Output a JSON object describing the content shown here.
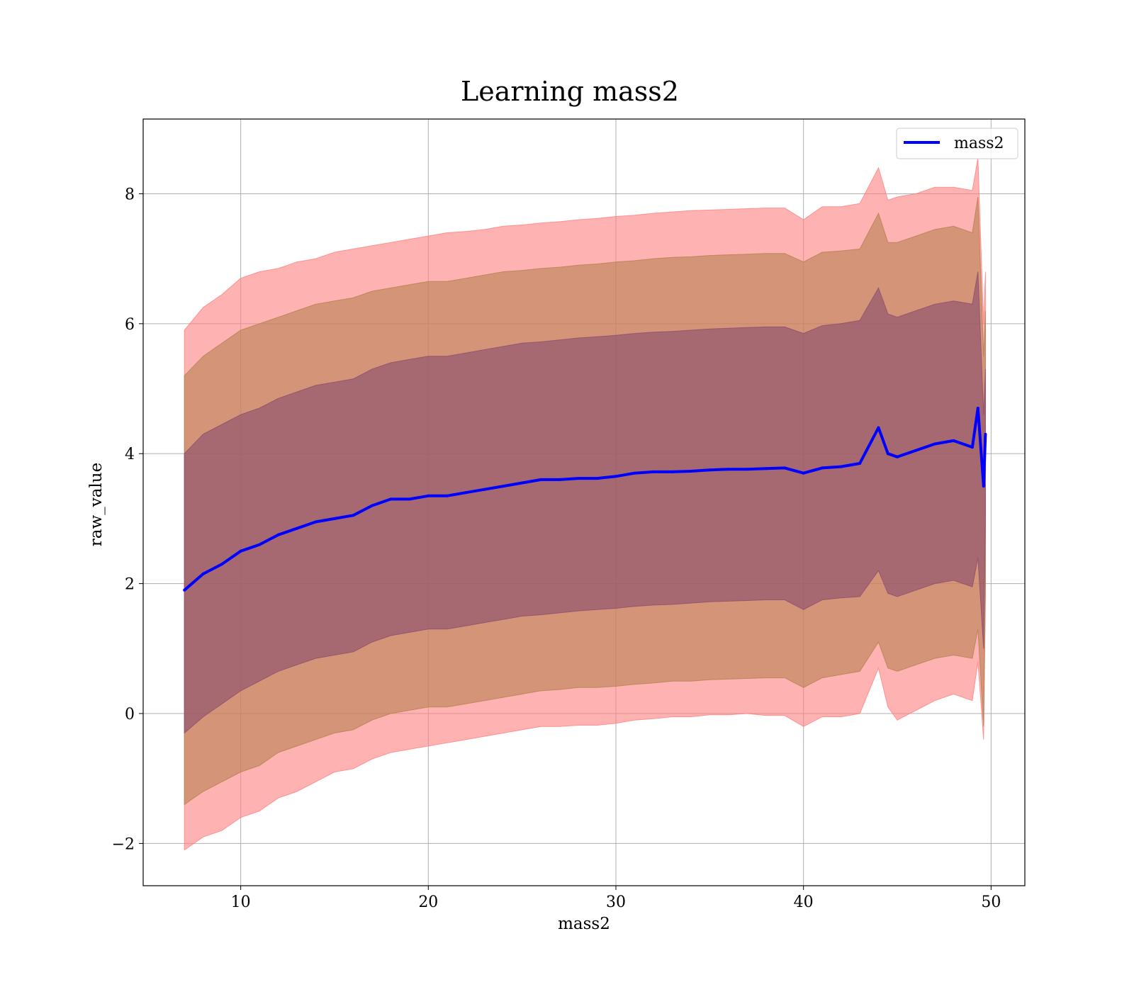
{
  "chart_data": {
    "type": "area",
    "title": "Learning mass2",
    "xlabel": "mass2",
    "ylabel": "raw_value",
    "xlim": [
      4.8,
      51.8
    ],
    "ylim": [
      -2.65,
      9.15
    ],
    "xticks": [
      10,
      20,
      30,
      40,
      50
    ],
    "yticks": [
      -2,
      0,
      2,
      4,
      6,
      8
    ],
    "grid": true,
    "legend_position": "top-right",
    "x": [
      7.0,
      8.0,
      9.0,
      10.0,
      11.0,
      12.0,
      13.0,
      14.0,
      15.0,
      16.0,
      17.0,
      18.0,
      19.0,
      20.0,
      21.0,
      22.0,
      23.0,
      24.0,
      25.0,
      26.0,
      27.0,
      28.0,
      29.0,
      30.0,
      31.0,
      32.0,
      33.0,
      34.0,
      35.0,
      36.0,
      37.0,
      38.0,
      39.0,
      40.0,
      41.0,
      42.0,
      43.0,
      44.0,
      44.5,
      45.0,
      46.0,
      47.0,
      48.0,
      49.0,
      49.3,
      49.6,
      49.7
    ],
    "series": [
      {
        "name": "mass2",
        "color": "#0000ff",
        "values": [
          1.9,
          2.15,
          2.3,
          2.5,
          2.6,
          2.75,
          2.85,
          2.95,
          3.0,
          3.05,
          3.2,
          3.3,
          3.3,
          3.35,
          3.35,
          3.4,
          3.45,
          3.5,
          3.55,
          3.6,
          3.6,
          3.62,
          3.62,
          3.65,
          3.7,
          3.72,
          3.72,
          3.73,
          3.75,
          3.76,
          3.76,
          3.77,
          3.78,
          3.7,
          3.78,
          3.8,
          3.85,
          4.4,
          4.0,
          3.95,
          4.05,
          4.15,
          4.2,
          4.1,
          4.7,
          3.5,
          4.3
        ]
      }
    ],
    "bands": [
      {
        "sigma": 3,
        "color": "#ff7f7f",
        "upper": [
          5.9,
          6.25,
          6.45,
          6.7,
          6.8,
          6.85,
          6.95,
          7.0,
          7.1,
          7.15,
          7.2,
          7.25,
          7.3,
          7.35,
          7.4,
          7.42,
          7.45,
          7.5,
          7.52,
          7.55,
          7.57,
          7.6,
          7.62,
          7.65,
          7.67,
          7.7,
          7.72,
          7.74,
          7.75,
          7.76,
          7.77,
          7.78,
          7.78,
          7.6,
          7.8,
          7.8,
          7.85,
          8.4,
          7.9,
          7.95,
          8.0,
          8.1,
          8.1,
          8.05,
          8.55,
          6.0,
          6.8
        ],
        "lower": [
          -2.1,
          -1.9,
          -1.8,
          -1.6,
          -1.5,
          -1.3,
          -1.2,
          -1.05,
          -0.9,
          -0.85,
          -0.7,
          -0.6,
          -0.55,
          -0.5,
          -0.45,
          -0.4,
          -0.35,
          -0.3,
          -0.25,
          -0.2,
          -0.2,
          -0.18,
          -0.18,
          -0.15,
          -0.1,
          -0.08,
          -0.05,
          -0.05,
          -0.02,
          -0.02,
          0.0,
          -0.03,
          -0.03,
          -0.2,
          -0.05,
          -0.05,
          0.0,
          0.7,
          0.1,
          -0.1,
          0.05,
          0.2,
          0.3,
          0.2,
          0.8,
          -0.4,
          1.8
        ]
      },
      {
        "sigma": 2,
        "color": "#b58050",
        "upper": [
          5.2,
          5.5,
          5.7,
          5.9,
          6.0,
          6.1,
          6.2,
          6.3,
          6.35,
          6.4,
          6.5,
          6.55,
          6.6,
          6.65,
          6.65,
          6.7,
          6.75,
          6.8,
          6.82,
          6.85,
          6.87,
          6.9,
          6.92,
          6.95,
          6.97,
          7.0,
          7.02,
          7.03,
          7.05,
          7.06,
          7.07,
          7.08,
          7.08,
          6.95,
          7.1,
          7.12,
          7.15,
          7.7,
          7.25,
          7.25,
          7.35,
          7.45,
          7.5,
          7.4,
          7.95,
          5.5,
          6.2
        ],
        "lower": [
          -1.4,
          -1.2,
          -1.05,
          -0.9,
          -0.8,
          -0.6,
          -0.5,
          -0.4,
          -0.3,
          -0.25,
          -0.1,
          0.0,
          0.05,
          0.1,
          0.1,
          0.15,
          0.2,
          0.25,
          0.3,
          0.35,
          0.37,
          0.4,
          0.4,
          0.42,
          0.45,
          0.47,
          0.5,
          0.5,
          0.52,
          0.53,
          0.54,
          0.55,
          0.55,
          0.4,
          0.55,
          0.6,
          0.65,
          1.1,
          0.7,
          0.65,
          0.75,
          0.85,
          0.9,
          0.85,
          1.3,
          -0.2,
          2.0
        ]
      },
      {
        "sigma": 1,
        "color": "#8b4c6e",
        "upper": [
          4.0,
          4.3,
          4.45,
          4.6,
          4.7,
          4.85,
          4.95,
          5.05,
          5.1,
          5.15,
          5.3,
          5.4,
          5.45,
          5.5,
          5.5,
          5.55,
          5.6,
          5.65,
          5.7,
          5.72,
          5.75,
          5.78,
          5.8,
          5.82,
          5.85,
          5.87,
          5.88,
          5.9,
          5.92,
          5.93,
          5.94,
          5.95,
          5.95,
          5.85,
          5.97,
          6.0,
          6.05,
          6.55,
          6.15,
          6.1,
          6.2,
          6.3,
          6.35,
          6.3,
          6.8,
          4.6,
          5.3
        ],
        "lower": [
          -0.3,
          -0.05,
          0.15,
          0.35,
          0.5,
          0.65,
          0.75,
          0.85,
          0.9,
          0.95,
          1.1,
          1.2,
          1.25,
          1.3,
          1.3,
          1.35,
          1.4,
          1.45,
          1.5,
          1.52,
          1.55,
          1.58,
          1.6,
          1.62,
          1.65,
          1.67,
          1.68,
          1.7,
          1.72,
          1.73,
          1.74,
          1.75,
          1.75,
          1.6,
          1.75,
          1.78,
          1.8,
          2.2,
          1.85,
          1.8,
          1.9,
          2.0,
          2.05,
          1.95,
          2.4,
          1.0,
          3.0
        ]
      }
    ]
  }
}
